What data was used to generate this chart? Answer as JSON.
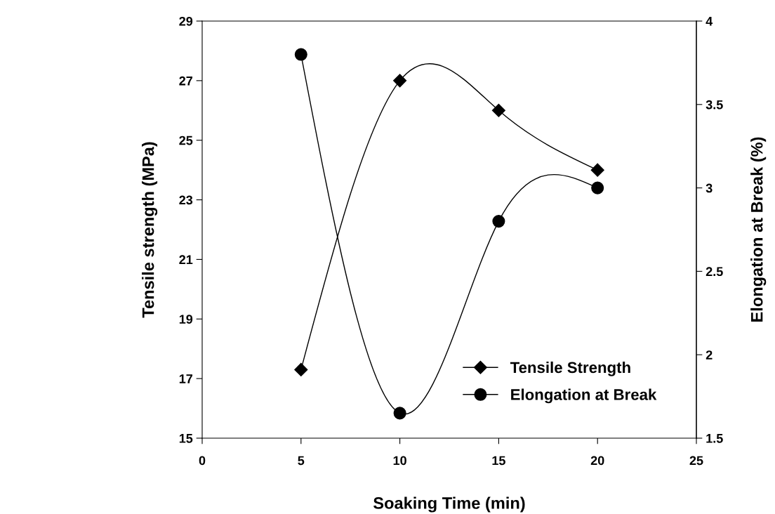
{
  "chart_data": {
    "type": "line",
    "xlabel": "Soaking Time (min)",
    "ylabel": "Tensile strength (MPa)",
    "y2label": "Elongation at Break (%)",
    "x": [
      5,
      10,
      15,
      20
    ],
    "series": [
      {
        "name": "Tensile Strength",
        "color": "#000000",
        "values": [
          17.3,
          27.0,
          26.0,
          24.0
        ],
        "marker": "diamond"
      },
      {
        "name": "Elongation at Break",
        "color": "#010101",
        "values": [
          3.8,
          1.65,
          2.8,
          3.0
        ],
        "marker": "circle",
        "axis": "y2"
      }
    ],
    "xlim": [
      0,
      25
    ],
    "xticks": [
      0,
      5,
      10,
      15,
      20,
      25
    ],
    "ylim": [
      15,
      29
    ],
    "yticks": [
      15,
      17,
      19,
      21,
      23,
      25,
      27,
      29
    ],
    "y2lim": [
      1.5,
      4
    ],
    "y2ticks": [
      1.5,
      2,
      2.5,
      3,
      3.5,
      4
    ],
    "legend": "bottom right",
    "grid": false
  }
}
